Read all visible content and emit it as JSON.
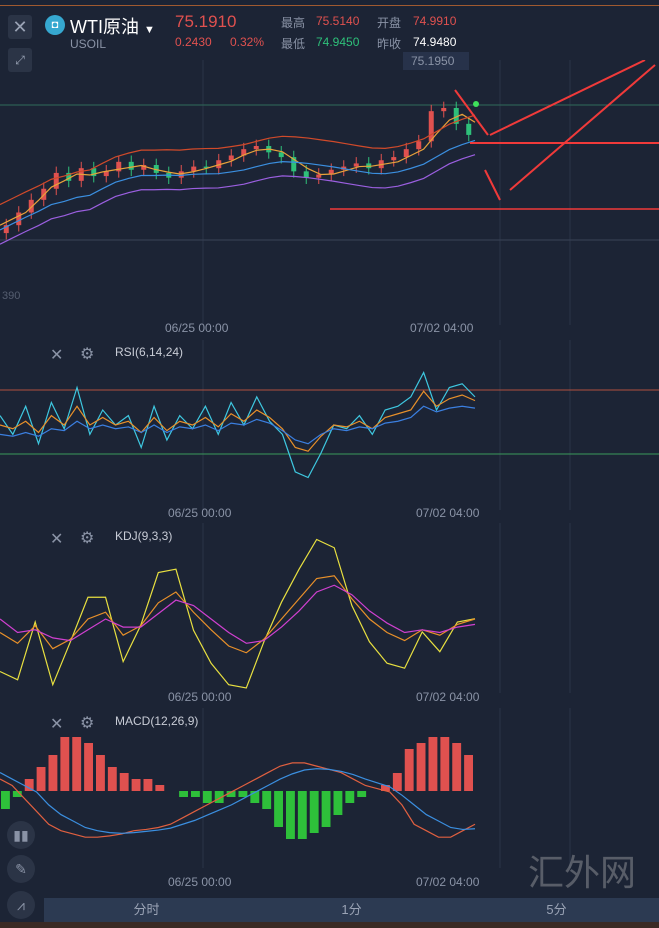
{
  "header": {
    "name": "WTI原油",
    "code": "USOIL",
    "price": "75.1910",
    "change": "0.2430",
    "change_pct": "0.32%",
    "high_label": "最高",
    "high": "75.5140",
    "open_label": "开盘",
    "open": "74.9910",
    "low_label": "最低",
    "low": "74.9450",
    "prev_label": "昨收",
    "prev": "74.9480",
    "crosshair_price": "75.1950",
    "axis_partial": "390"
  },
  "colors": {
    "up": "#e0514f",
    "down": "#2ec07a"
  },
  "date_labels": [
    "06/25 00:00",
    "07/02 04:00"
  ],
  "indicators": {
    "rsi": "RSI(6,14,24)",
    "kdj": "KDJ(9,3,3)",
    "macd": "MACD(12,26,9)"
  },
  "tabs": [
    "分时",
    "1分",
    "5分"
  ],
  "watermark": "汇外网",
  "series": {
    "close": [
      74.62,
      74.7,
      74.78,
      74.85,
      74.95,
      74.9,
      74.98,
      74.93,
      74.96,
      75.02,
      74.97,
      75.0,
      74.95,
      74.92,
      74.96,
      74.99,
      74.98,
      75.03,
      75.06,
      75.1,
      75.12,
      75.08,
      75.05,
      74.96,
      74.92,
      74.94,
      74.97,
      74.99,
      75.01,
      74.98,
      75.03,
      75.05,
      75.1,
      75.15,
      75.34,
      75.36,
      75.26,
      75.19
    ],
    "rsi6": [
      55,
      45,
      60,
      40,
      62,
      48,
      70,
      45,
      58,
      50,
      55,
      38,
      60,
      42,
      55,
      48,
      60,
      45,
      62,
      50,
      65,
      52,
      45,
      25,
      22,
      35,
      50,
      48,
      55,
      45,
      58,
      60,
      65,
      78,
      58,
      70,
      72,
      65
    ],
    "rsi14": [
      50,
      48,
      52,
      46,
      55,
      50,
      60,
      50,
      54,
      50,
      52,
      46,
      54,
      47,
      52,
      50,
      54,
      49,
      56,
      52,
      58,
      54,
      48,
      38,
      36,
      44,
      50,
      49,
      52,
      48,
      54,
      56,
      58,
      68,
      60,
      64,
      66,
      63
    ],
    "rsi24": [
      45,
      44,
      46,
      44,
      48,
      47,
      52,
      48,
      50,
      48,
      49,
      46,
      50,
      46,
      49,
      48,
      50,
      47,
      51,
      50,
      53,
      51,
      47,
      42,
      40,
      45,
      48,
      47,
      49,
      48,
      51,
      52,
      54,
      60,
      57,
      59,
      60,
      59
    ],
    "k": [
      70,
      78,
      65,
      82,
      75,
      60,
      55,
      72,
      65,
      48,
      40,
      55,
      68,
      80,
      85,
      75,
      60,
      45,
      30,
      28,
      45,
      60,
      70,
      76,
      68,
      72,
      64,
      60
    ],
    "d": [
      60,
      70,
      68,
      74,
      76,
      68,
      60,
      66,
      66,
      56,
      46,
      50,
      60,
      70,
      78,
      76,
      66,
      54,
      40,
      35,
      42,
      54,
      63,
      70,
      68,
      70,
      66,
      64
    ],
    "j": [
      90,
      95,
      60,
      98,
      72,
      45,
      45,
      84,
      62,
      30,
      28,
      65,
      85,
      98,
      100,
      72,
      48,
      28,
      10,
      15,
      50,
      72,
      85,
      88,
      66,
      78,
      60,
      58
    ],
    "macd_hist": [
      -3,
      -1,
      2,
      4,
      6,
      9,
      9,
      8,
      6,
      4,
      3,
      2,
      2,
      1,
      0,
      -1,
      -1,
      -2,
      -2,
      -1,
      -1,
      -2,
      -3,
      -6,
      -8,
      -8,
      -7,
      -6,
      -4,
      -2,
      -1,
      0,
      1,
      3,
      7,
      8,
      9,
      9,
      8,
      6
    ],
    "dif": [
      -1,
      0,
      2,
      4,
      6,
      7,
      7.5,
      8,
      8,
      7.8,
      7.5,
      7,
      6.8,
      6.5,
      6,
      5,
      4,
      3,
      2,
      1,
      0,
      -1,
      -2,
      -3,
      -3.5,
      -3.5,
      -3,
      -2.5,
      -2,
      -1,
      0,
      0.5,
      1,
      3,
      6,
      7,
      8,
      8,
      7,
      6
    ],
    "dea": [
      -2,
      -1,
      0,
      1,
      3,
      4.5,
      5.5,
      6.5,
      7,
      7.3,
      7.4,
      7.3,
      7.1,
      6.9,
      6.6,
      6,
      5.4,
      4.6,
      3.8,
      3,
      2,
      1,
      0,
      -1,
      -1.8,
      -2.4,
      -2.6,
      -2.5,
      -2.2,
      -1.7,
      -1,
      -0.4,
      0.2,
      1.5,
      3,
      4.5,
      5.5,
      6.5,
      6.8,
      6.7
    ]
  }
}
